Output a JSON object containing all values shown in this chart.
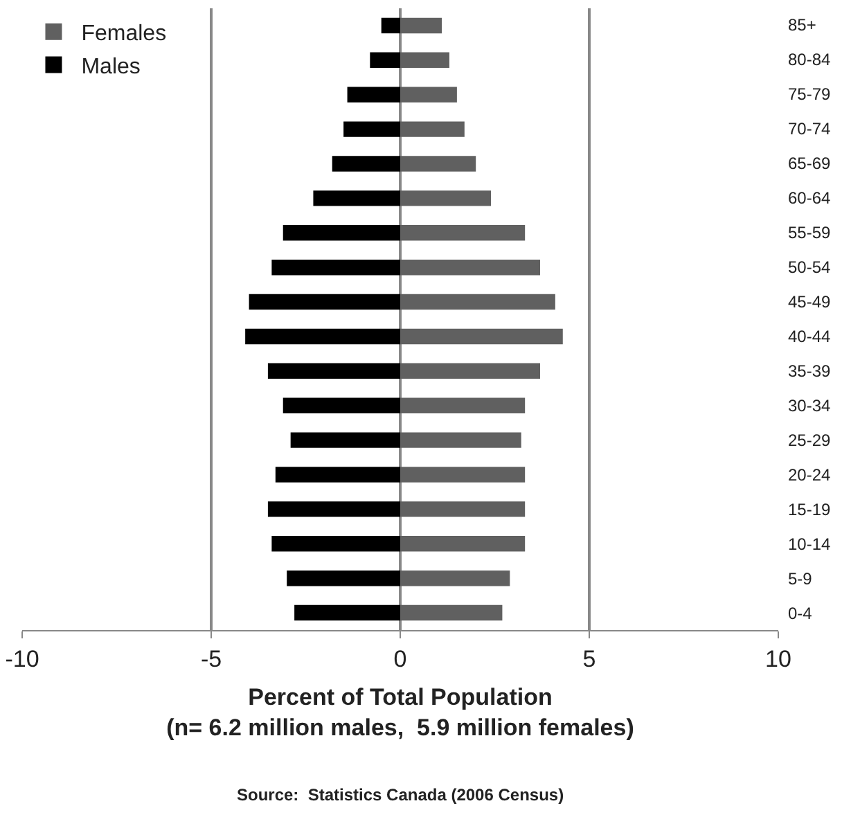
{
  "chart_data": {
    "type": "bar",
    "orientation": "horizontal",
    "xlabel": "Percent of Total Population\n(n= 6.2 million males,  5.9 million females)",
    "annotations": [
      "Source:  Statistics Canada (2006 Census)"
    ],
    "categories": [
      "85+",
      "80-84",
      "75-79",
      "70-74",
      "65-69",
      "60-64",
      "55-59",
      "50-54",
      "45-49",
      "40-44",
      "35-39",
      "30-34",
      "25-29",
      "20-24",
      "15-19",
      "10-14",
      "5-9",
      "0-4"
    ],
    "series": [
      {
        "name": "Females",
        "color": "#606060",
        "values": [
          1.1,
          1.3,
          1.5,
          1.7,
          2.0,
          2.4,
          3.3,
          3.7,
          4.1,
          4.3,
          3.7,
          3.3,
          3.2,
          3.3,
          3.3,
          3.3,
          2.9,
          2.7
        ]
      },
      {
        "name": "Males",
        "color": "#000000",
        "values": [
          -0.5,
          -0.8,
          -1.4,
          -1.5,
          -1.8,
          -2.3,
          -3.1,
          -3.4,
          -4.0,
          -4.1,
          -3.5,
          -3.1,
          -2.9,
          -3.3,
          -3.5,
          -3.4,
          -3.0,
          -2.8
        ]
      }
    ],
    "xlim": [
      -10,
      10
    ],
    "xticks": [
      -10,
      -5,
      0,
      5,
      10
    ],
    "grid": "x",
    "legend": "top left",
    "stacked": true
  }
}
